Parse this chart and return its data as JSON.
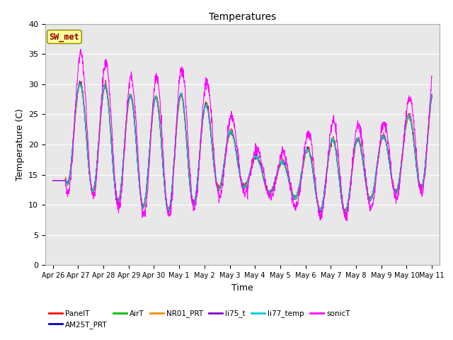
{
  "title": "Temperatures",
  "xlabel": "Time",
  "ylabel": "Temperature (C)",
  "ylim": [
    0,
    40
  ],
  "yticks": [
    0,
    5,
    10,
    15,
    20,
    25,
    30,
    35,
    40
  ],
  "annotation": "SW_met",
  "annotation_color": "#8B0000",
  "annotation_bg": "#FFFFA0",
  "annotation_border": "#999900",
  "bg_color": "#E8E8E8",
  "series_colors": {
    "PanelT": "#FF0000",
    "AM25T_PRT": "#0000CC",
    "AirT": "#00BB00",
    "NR01_PRT": "#FF8800",
    "li75_t": "#8800CC",
    "li77_temp": "#00CCCC",
    "sonicT": "#FF00FF"
  },
  "n_points": 1500,
  "figsize": [
    6.4,
    4.8
  ],
  "dpi": 100
}
